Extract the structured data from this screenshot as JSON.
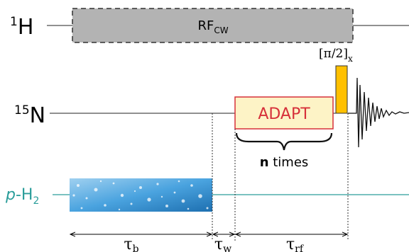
{
  "channels": {
    "h1": {
      "mass": "1",
      "element": "H"
    },
    "n15": {
      "mass": "15",
      "element": "N"
    },
    "ph2": {
      "prefix": "p",
      "element": "-H",
      "sub": "2"
    }
  },
  "blocks": {
    "rf_cw": {
      "label": "RF",
      "sub": "CW"
    },
    "adapt": {
      "label": "ADAPT"
    },
    "pulse": {
      "bracket_open": "[",
      "label": "π/2",
      "bracket_close": "]",
      "sub": "x"
    }
  },
  "repeat": {
    "count": "n",
    "suffix": " times"
  },
  "delays": {
    "tau_b": {
      "symbol": "τ",
      "sub": "b"
    },
    "tau_w": {
      "symbol": "τ",
      "sub": "w"
    },
    "tau_rf": {
      "symbol": "τ",
      "sub": "rf"
    }
  },
  "colors": {
    "teal": "#2a9d9a",
    "rf_fill": "#b3b3b3",
    "adapt_fill": "#fdf3c6",
    "adapt_stroke": "#d6303a",
    "adapt_text": "#d6303a",
    "pulse_fill": "#ffc000",
    "bubble": "#2f86c8"
  },
  "icons": {
    "bubbles": "hydrogen-bubbles-image",
    "fid": "fid-signal"
  }
}
